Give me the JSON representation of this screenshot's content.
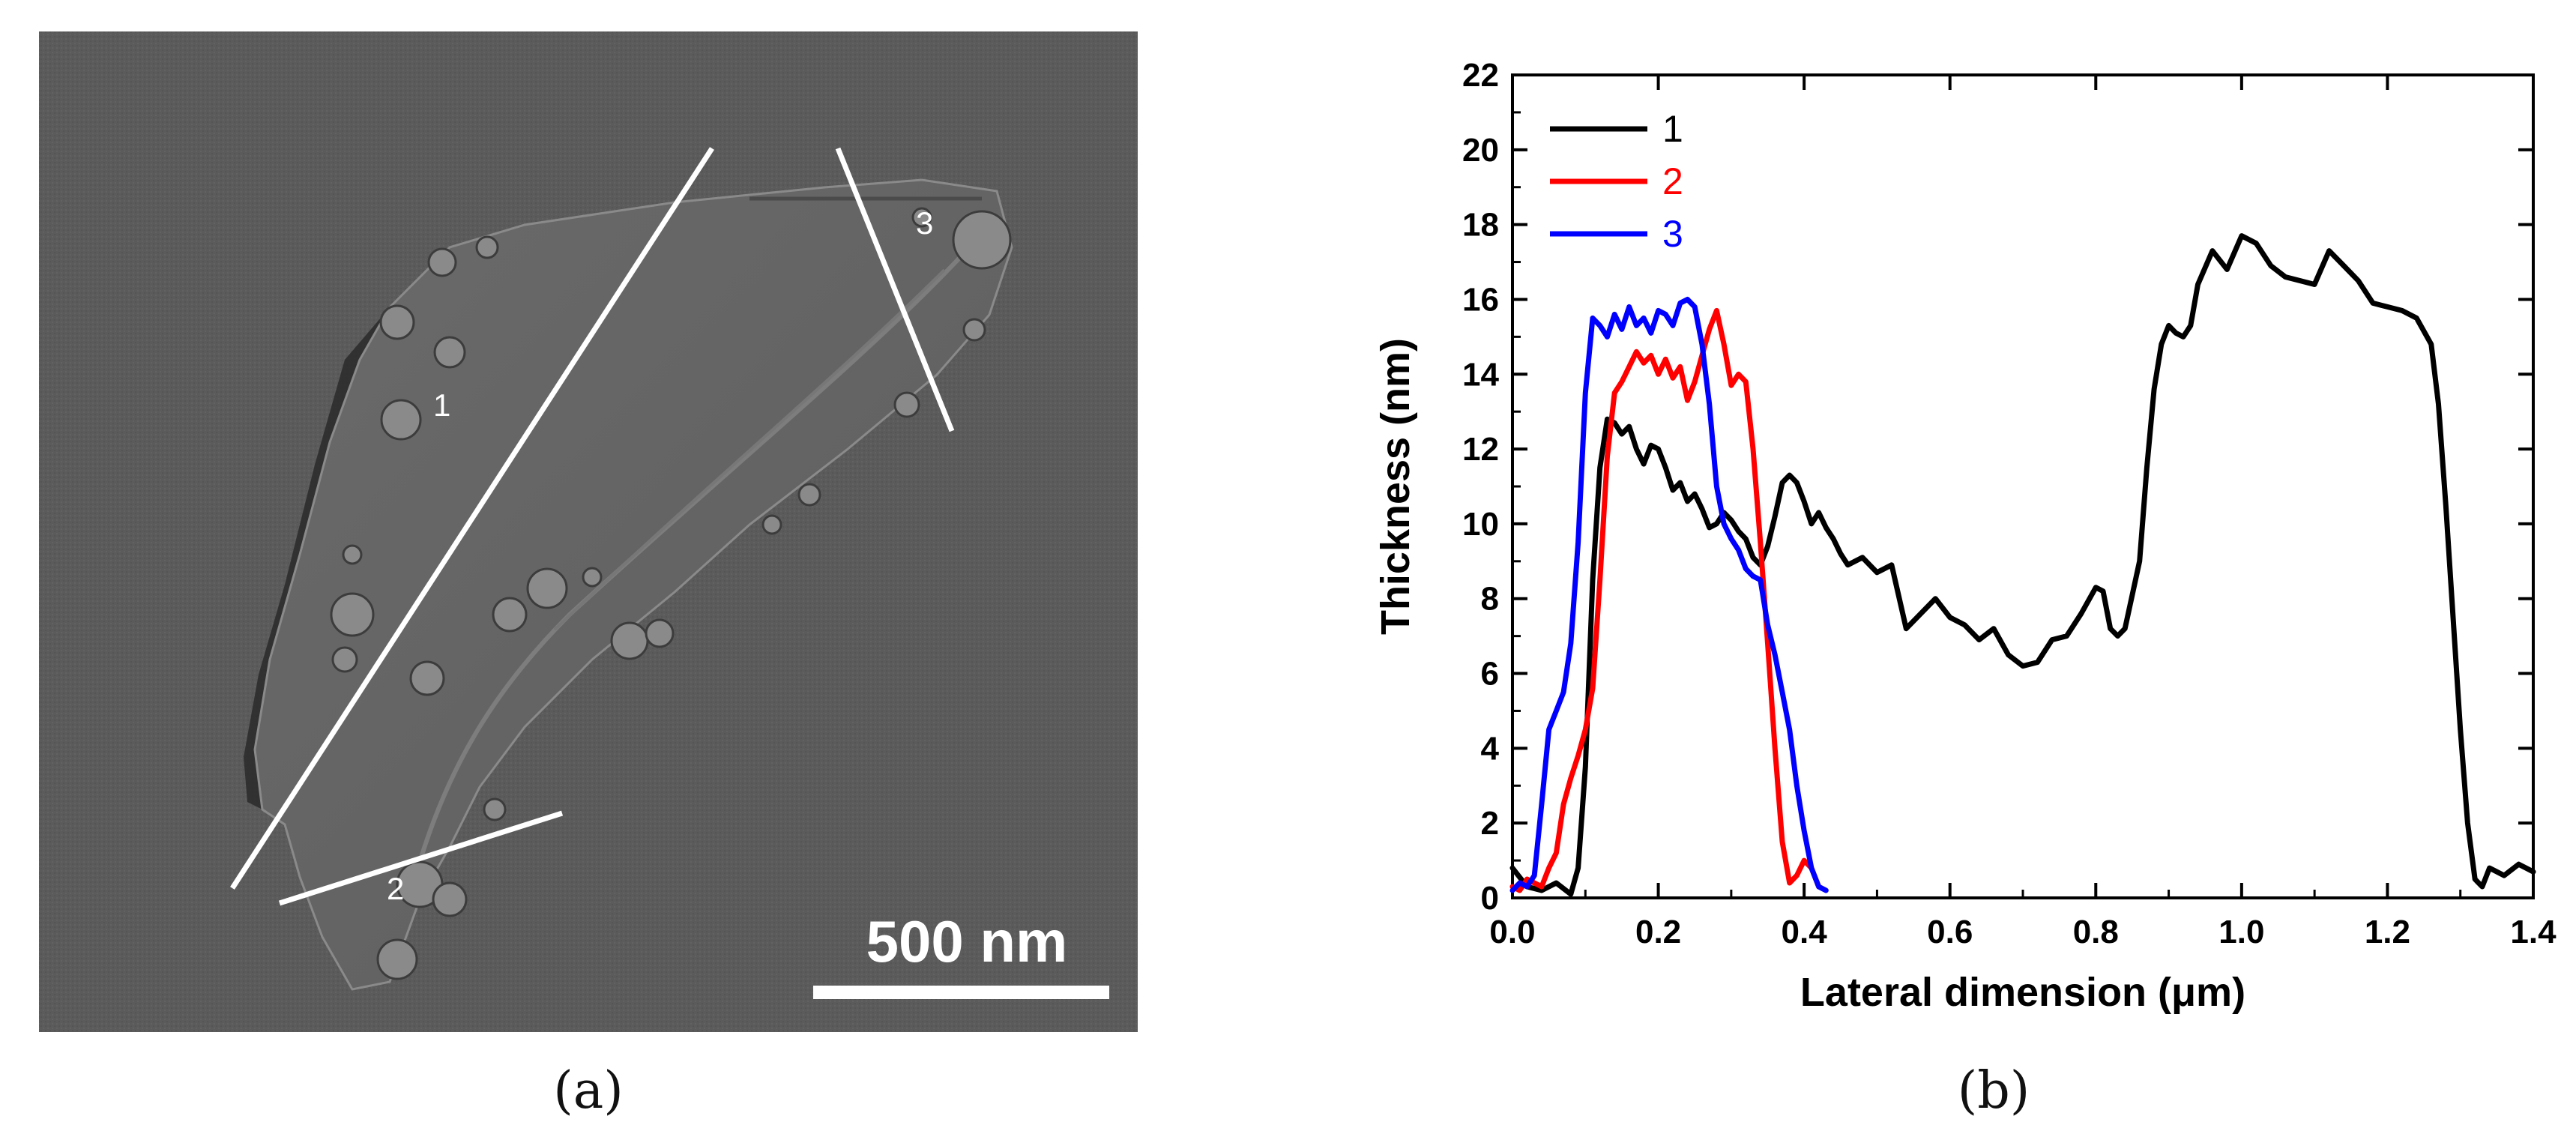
{
  "panel_a": {
    "label": "(a)",
    "scale_bar_text": "500 nm",
    "line_labels": [
      "1",
      "2",
      "3"
    ]
  },
  "panel_b": {
    "label": "(b)"
  },
  "colors": {
    "series_1": "#000000",
    "series_2": "#ff0000",
    "series_3": "#0000ff",
    "afm_background": "#5a5a5a",
    "scan_line": "#ffffff"
  },
  "chart_data": {
    "type": "line",
    "title": "",
    "xlabel": "Lateral dimension (μm)",
    "ylabel": "Thickness (nm)",
    "xlim": [
      0.0,
      1.4
    ],
    "ylim": [
      0,
      22
    ],
    "xticks": [
      "0.0",
      "0.2",
      "0.4",
      "0.6",
      "0.8",
      "1.0",
      "1.2",
      "1.4"
    ],
    "yticks": [
      "0",
      "2",
      "4",
      "6",
      "8",
      "10",
      "12",
      "14",
      "16",
      "18",
      "20",
      "22"
    ],
    "legend_position": "top-left",
    "series": [
      {
        "name": "1",
        "color": "#000000",
        "x": [
          0.0,
          0.02,
          0.04,
          0.06,
          0.08,
          0.09,
          0.1,
          0.11,
          0.12,
          0.13,
          0.14,
          0.15,
          0.16,
          0.17,
          0.18,
          0.19,
          0.2,
          0.21,
          0.22,
          0.23,
          0.24,
          0.25,
          0.26,
          0.27,
          0.28,
          0.29,
          0.3,
          0.31,
          0.32,
          0.33,
          0.34,
          0.35,
          0.36,
          0.37,
          0.38,
          0.39,
          0.4,
          0.41,
          0.42,
          0.43,
          0.44,
          0.45,
          0.46,
          0.48,
          0.5,
          0.52,
          0.54,
          0.56,
          0.58,
          0.6,
          0.62,
          0.64,
          0.66,
          0.68,
          0.7,
          0.72,
          0.74,
          0.76,
          0.78,
          0.8,
          0.81,
          0.82,
          0.83,
          0.84,
          0.86,
          0.87,
          0.88,
          0.89,
          0.9,
          0.91,
          0.92,
          0.93,
          0.94,
          0.96,
          0.98,
          1.0,
          1.02,
          1.04,
          1.06,
          1.08,
          1.1,
          1.12,
          1.14,
          1.16,
          1.18,
          1.2,
          1.22,
          1.24,
          1.26,
          1.27,
          1.28,
          1.29,
          1.3,
          1.31,
          1.32,
          1.33,
          1.34,
          1.35,
          1.36,
          1.38,
          1.39,
          1.4
        ],
        "y": [
          0.8,
          0.3,
          0.2,
          0.4,
          0.1,
          0.8,
          3.5,
          8.5,
          11.5,
          12.8,
          12.7,
          12.4,
          12.6,
          12.0,
          11.6,
          12.1,
          12.0,
          11.5,
          10.9,
          11.1,
          10.6,
          10.8,
          10.4,
          9.9,
          10.0,
          10.3,
          10.1,
          9.8,
          9.6,
          9.1,
          8.9,
          9.4,
          10.2,
          11.1,
          11.3,
          11.1,
          10.6,
          10.0,
          10.3,
          9.9,
          9.6,
          9.2,
          8.9,
          9.1,
          8.7,
          8.9,
          7.2,
          7.6,
          8.0,
          7.5,
          7.3,
          6.9,
          7.2,
          6.5,
          6.2,
          6.3,
          6.9,
          7.0,
          7.6,
          8.3,
          8.2,
          7.2,
          7.0,
          7.2,
          9.0,
          11.5,
          13.6,
          14.8,
          15.3,
          15.1,
          15.0,
          15.3,
          16.4,
          17.3,
          16.8,
          17.7,
          17.5,
          16.9,
          16.6,
          16.5,
          16.4,
          17.3,
          16.9,
          16.5,
          15.9,
          15.8,
          15.7,
          15.5,
          14.8,
          13.2,
          10.5,
          7.5,
          4.5,
          2.0,
          0.5,
          0.3,
          0.8,
          0.7,
          0.6,
          0.9,
          0.8,
          0.7
        ]
      },
      {
        "name": "2",
        "color": "#ff0000",
        "x": [
          0.0,
          0.01,
          0.02,
          0.03,
          0.04,
          0.05,
          0.06,
          0.07,
          0.08,
          0.09,
          0.1,
          0.11,
          0.12,
          0.13,
          0.14,
          0.15,
          0.16,
          0.17,
          0.18,
          0.19,
          0.2,
          0.21,
          0.22,
          0.23,
          0.24,
          0.25,
          0.26,
          0.27,
          0.28,
          0.29,
          0.3,
          0.31,
          0.32,
          0.33,
          0.34,
          0.35,
          0.36,
          0.37,
          0.38,
          0.39,
          0.4,
          0.41,
          0.42
        ],
        "y": [
          0.3,
          0.2,
          0.5,
          0.4,
          0.3,
          0.8,
          1.2,
          2.5,
          3.2,
          3.8,
          4.5,
          5.6,
          8.5,
          11.8,
          13.5,
          13.8,
          14.2,
          14.6,
          14.3,
          14.5,
          14.0,
          14.4,
          13.9,
          14.2,
          13.3,
          13.8,
          14.5,
          15.2,
          15.7,
          14.8,
          13.7,
          14.0,
          13.8,
          12.0,
          9.5,
          6.8,
          4.0,
          1.5,
          0.4,
          0.6,
          1.0,
          0.8,
          0.3
        ]
      },
      {
        "name": "3",
        "color": "#0000ff",
        "x": [
          0.0,
          0.01,
          0.02,
          0.03,
          0.04,
          0.05,
          0.06,
          0.07,
          0.08,
          0.09,
          0.1,
          0.11,
          0.12,
          0.13,
          0.14,
          0.15,
          0.16,
          0.17,
          0.18,
          0.19,
          0.2,
          0.21,
          0.22,
          0.23,
          0.24,
          0.25,
          0.26,
          0.27,
          0.28,
          0.29,
          0.3,
          0.31,
          0.32,
          0.33,
          0.34,
          0.35,
          0.36,
          0.37,
          0.38,
          0.39,
          0.4,
          0.41,
          0.42,
          0.43
        ],
        "y": [
          0.2,
          0.4,
          0.3,
          0.6,
          2.5,
          4.5,
          5.0,
          5.5,
          6.8,
          9.5,
          13.5,
          15.5,
          15.3,
          15.0,
          15.6,
          15.2,
          15.8,
          15.3,
          15.5,
          15.1,
          15.7,
          15.6,
          15.3,
          15.9,
          16.0,
          15.8,
          14.8,
          13.2,
          11.0,
          10.0,
          9.6,
          9.3,
          8.8,
          8.6,
          8.5,
          7.3,
          6.5,
          5.5,
          4.5,
          3.0,
          1.8,
          0.8,
          0.3,
          0.2
        ]
      }
    ]
  }
}
